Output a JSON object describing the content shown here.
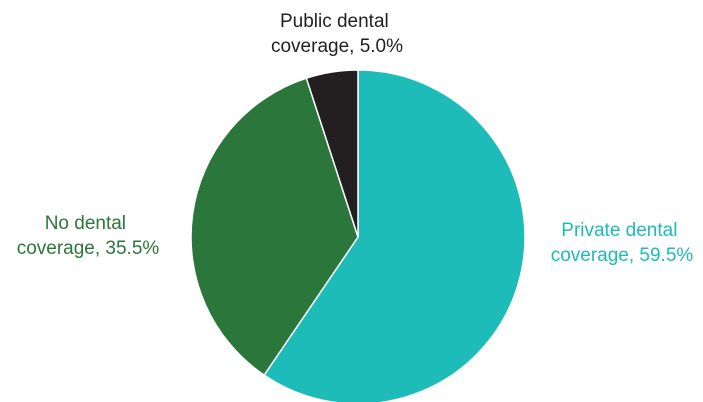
{
  "chart_data": {
    "type": "pie",
    "title": "",
    "start_angle_deg": 0,
    "direction": "clockwise",
    "slices": [
      {
        "label": "Private dental coverage, 59.5%",
        "label_lines": [
          "Private dental",
          "coverage, 59.5%"
        ],
        "value": 59.5,
        "color": "#1ebcb9",
        "label_color": "#1ebcb9"
      },
      {
        "label": "No dental coverage, 35.5%",
        "label_lines": [
          "No dental",
          "coverage, 35.5%"
        ],
        "value": 35.5,
        "color": "#2b763a",
        "label_color": "#2b763a"
      },
      {
        "label": "Public dental coverage, 5.0%",
        "label_lines": [
          "Public dental",
          "coverage, 5.0%"
        ],
        "value": 5.0,
        "color": "#231f20",
        "label_color": "#231f20"
      }
    ]
  }
}
